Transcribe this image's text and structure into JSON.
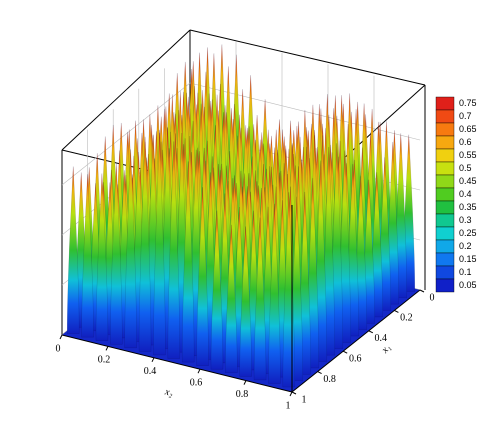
{
  "chart_data": {
    "type": "surface",
    "x_label": "x₂",
    "y_label": "x₁",
    "xlim": [
      0,
      1
    ],
    "xticks": [
      0,
      0.2,
      0.4,
      0.6,
      0.8,
      1
    ],
    "ylim": [
      0,
      1
    ],
    "yticks": [
      0,
      0.2,
      0.4,
      0.6,
      0.8,
      1
    ],
    "colorbar": {
      "levels": [
        0.75,
        0.7,
        0.65,
        0.6,
        0.55,
        0.5,
        0.45,
        0.4,
        0.35,
        0.3,
        0.25,
        0.2,
        0.15,
        0.1,
        0.05
      ],
      "colors": [
        "#e0201a",
        "#f04a14",
        "#f77a10",
        "#f7a810",
        "#f0d010",
        "#c8e010",
        "#90d818",
        "#50cc20",
        "#20c040",
        "#10c890",
        "#10d0d0",
        "#10a8e8",
        "#1078f0",
        "#1048e0",
        "#1020c8"
      ]
    }
  }
}
